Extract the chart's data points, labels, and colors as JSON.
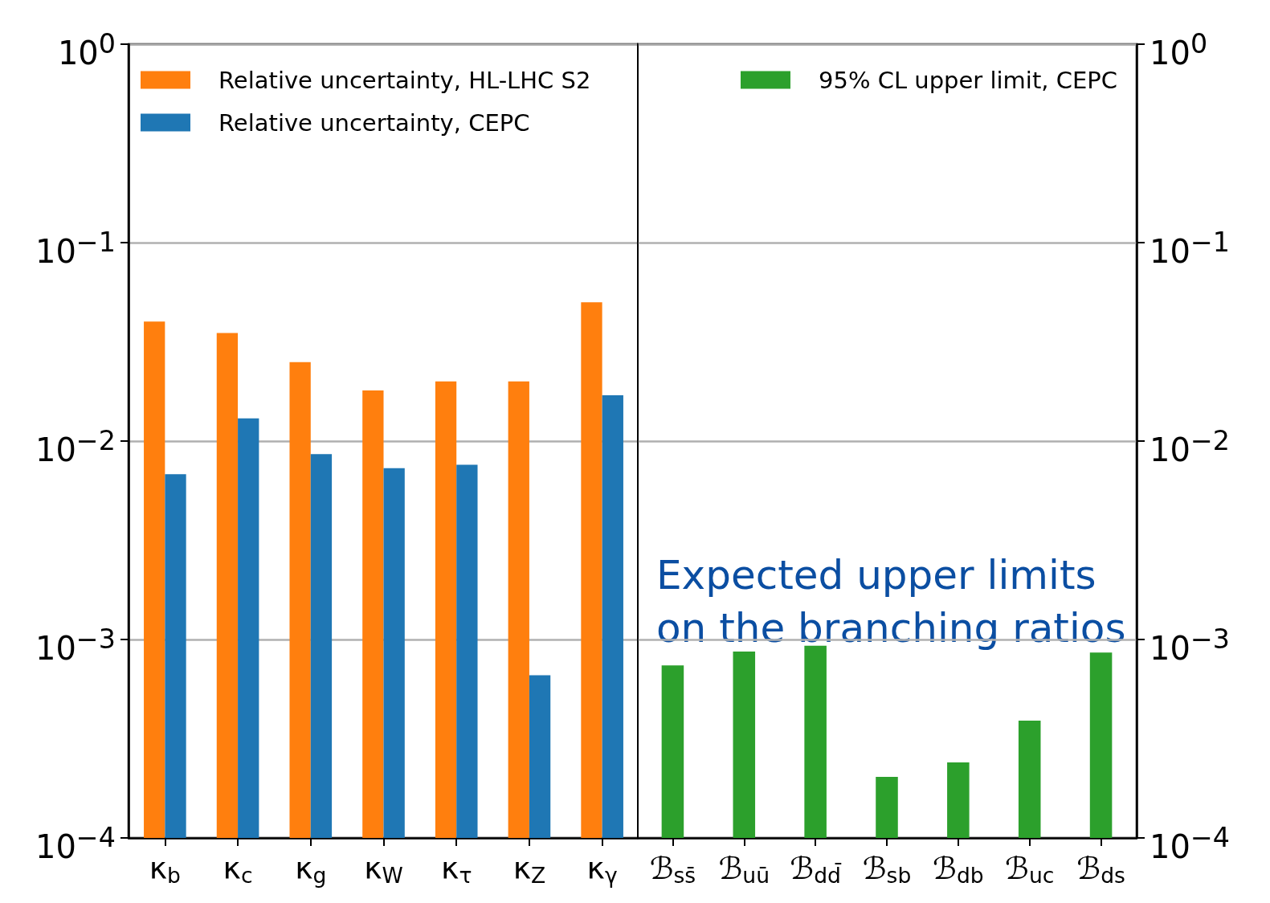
{
  "chart_data": [
    {
      "type": "bar",
      "categories": [
        "κ$_{b}$",
        "κ$_{c}$",
        "κ$_{g}$",
        "κ$_{W}$",
        "κ$_{τ}$",
        "κ$_{Z}$",
        "κ$_{γ}$"
      ],
      "series": [
        {
          "name": "Relative uncertainty, HL-LHC S2",
          "color": "#ff7f0e",
          "values": [
            0.04,
            0.035,
            0.025,
            0.018,
            0.02,
            0.02,
            0.05
          ]
        },
        {
          "name": "Relative uncertainty, CEPC",
          "color": "#1f77b4",
          "values": [
            0.0068,
            0.013,
            0.0086,
            0.0073,
            0.0076,
            0.00066,
            0.017
          ]
        }
      ],
      "log": "y",
      "ylim": [
        0.0001,
        1
      ],
      "yticks": [
        {
          "value": 0.0001,
          "label": "10$^{−4}$"
        },
        {
          "value": 0.001,
          "label": "10$^{−3}$"
        },
        {
          "value": 0.01,
          "label": "10$^{−2}$"
        },
        {
          "value": 0.1,
          "label": "10$^{−1}$"
        },
        {
          "value": 1,
          "label": "10$^{0}$"
        }
      ],
      "grid": "y",
      "legend": "top left"
    },
    {
      "type": "bar",
      "categories": [
        "ℬ$_{ss̄}$",
        "ℬ$_{uū}$",
        "ℬ$_{dd̄}$",
        "ℬ$_{sb}$",
        "ℬ$_{db}$",
        "ℬ$_{uc}$",
        "ℬ$_{ds}$"
      ],
      "series": [
        {
          "name": "95% CL upper limit, CEPC",
          "color": "#2ca02c",
          "axis": "y2",
          "values": [
            0.00074,
            0.00087,
            0.00093,
            0.000203,
            0.00024,
            0.00039,
            0.00086
          ]
        }
      ],
      "log": "y2",
      "y2lim": [
        0.0001,
        1
      ],
      "y2ticks": [
        {
          "value": 0.0001,
          "label": "10$^{−4}$"
        },
        {
          "value": 0.001,
          "label": "10$^{−3}$"
        },
        {
          "value": 0.01,
          "label": "10$^{−2}$"
        },
        {
          "value": 0.1,
          "label": "10$^{−1}$"
        },
        {
          "value": 1,
          "label": "10$^{0}$"
        }
      ],
      "grid": "y",
      "legend": "top right",
      "annotations": [
        "Expected upper limits on the branching ratios"
      ]
    }
  ]
}
